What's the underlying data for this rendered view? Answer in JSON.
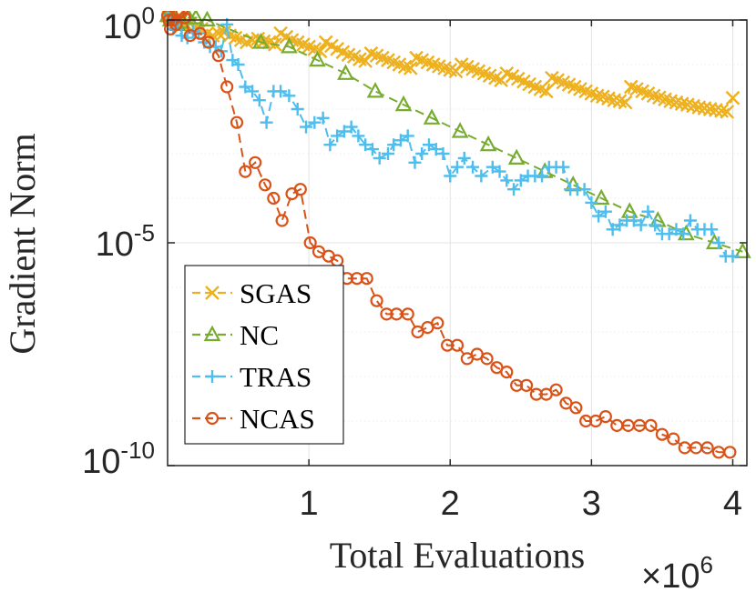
{
  "chart_data": {
    "type": "line",
    "title": "",
    "xlabel": "Total Evaluations",
    "ylabel": "Gradient Norm",
    "x_multiplier": {
      "base": "×10",
      "exponent": "6"
    },
    "xlim": [
      0,
      4.1
    ],
    "ylim_log10": [
      -10,
      0
    ],
    "yscale": "log",
    "grid": true,
    "legend_position": "bottom-left",
    "x_ticks": [
      {
        "value": 1,
        "label": "1"
      },
      {
        "value": 2,
        "label": "2"
      },
      {
        "value": 3,
        "label": "3"
      },
      {
        "value": 4,
        "label": "4"
      }
    ],
    "y_ticks": [
      {
        "log10": 0,
        "base": "10",
        "exponent": "0"
      },
      {
        "log10": -5,
        "base": "10",
        "exponent": "-5"
      },
      {
        "log10": -10,
        "base": "10",
        "exponent": "-10"
      }
    ],
    "series": [
      {
        "name": "SGAS",
        "color": "#EDB120",
        "marker": "x",
        "x": [
          0,
          0.01,
          0.02,
          0.04,
          0.06,
          0.08,
          0.1,
          0.13,
          0.16,
          0.2,
          0.24,
          0.28,
          0.32,
          0.36,
          0.4,
          0.44,
          0.48,
          0.52,
          0.56,
          0.6,
          0.64,
          0.68,
          0.72,
          0.76,
          0.8,
          0.84,
          0.88,
          0.92,
          0.96,
          1.0,
          1.04,
          1.08,
          1.12,
          1.16,
          1.2,
          1.24,
          1.28,
          1.32,
          1.36,
          1.4,
          1.44,
          1.48,
          1.52,
          1.56,
          1.6,
          1.64,
          1.68,
          1.72,
          1.76,
          1.8,
          1.84,
          1.88,
          1.92,
          1.96,
          2.0,
          2.04,
          2.08,
          2.12,
          2.16,
          2.2,
          2.24,
          2.28,
          2.32,
          2.36,
          2.4,
          2.44,
          2.48,
          2.52,
          2.56,
          2.6,
          2.64,
          2.68,
          2.72,
          2.76,
          2.8,
          2.84,
          2.88,
          2.92,
          2.96,
          3.0,
          3.04,
          3.08,
          3.12,
          3.16,
          3.2,
          3.24,
          3.28,
          3.32,
          3.36,
          3.4,
          3.44,
          3.48,
          3.52,
          3.56,
          3.6,
          3.64,
          3.68,
          3.72,
          3.76,
          3.8,
          3.84,
          3.88,
          3.92,
          3.96,
          4.0
        ],
        "log10": [
          0.1,
          0.1,
          0.05,
          0.0,
          -0.05,
          -0.1,
          -0.12,
          -0.1,
          -0.08,
          -0.15,
          -0.2,
          -0.3,
          -0.35,
          -0.3,
          -0.28,
          -0.35,
          -0.4,
          -0.45,
          -0.5,
          -0.45,
          -0.42,
          -0.48,
          -0.5,
          -0.55,
          -0.3,
          -0.38,
          -0.45,
          -0.5,
          -0.55,
          -0.6,
          -0.65,
          -0.7,
          -0.5,
          -0.58,
          -0.65,
          -0.72,
          -0.78,
          -0.82,
          -0.88,
          -0.92,
          -0.75,
          -0.8,
          -0.85,
          -0.9,
          -0.95,
          -1.0,
          -1.05,
          -1.08,
          -0.85,
          -0.9,
          -0.95,
          -1.0,
          -1.04,
          -1.08,
          -1.12,
          -1.15,
          -1.0,
          -1.05,
          -1.1,
          -1.15,
          -1.2,
          -1.25,
          -1.3,
          -1.35,
          -1.2,
          -1.26,
          -1.32,
          -1.38,
          -1.44,
          -1.5,
          -1.55,
          -1.6,
          -1.3,
          -1.35,
          -1.4,
          -1.45,
          -1.5,
          -1.55,
          -1.6,
          -1.65,
          -1.7,
          -1.72,
          -1.76,
          -1.8,
          -1.82,
          -1.85,
          -1.5,
          -1.55,
          -1.6,
          -1.65,
          -1.7,
          -1.74,
          -1.78,
          -1.82,
          -1.85,
          -1.88,
          -1.9,
          -1.93,
          -1.96,
          -1.98,
          -2.0,
          -2.02,
          -2.04,
          -2.06,
          -1.75
        ]
      },
      {
        "name": "NC",
        "color": "#77AC30",
        "marker": "triangle",
        "x": [
          0.0,
          0.02,
          0.04,
          0.07,
          0.1,
          0.15,
          0.2,
          0.28,
          0.66,
          0.86,
          1.06,
          1.26,
          1.47,
          1.67,
          1.87,
          2.07,
          2.27,
          2.47,
          2.67,
          2.87,
          3.07,
          3.27,
          3.47,
          3.67,
          3.87,
          4.07
        ],
        "log10": [
          0.1,
          0.0,
          0.05,
          -0.1,
          -0.05,
          0.05,
          0.05,
          0.0,
          -0.5,
          -0.6,
          -0.9,
          -1.2,
          -1.6,
          -1.9,
          -2.2,
          -2.5,
          -2.8,
          -3.1,
          -3.4,
          -3.7,
          -4.0,
          -4.3,
          -4.5,
          -4.8,
          -5.0,
          -5.2
        ]
      },
      {
        "name": "TRAS",
        "color": "#4DBEEE",
        "marker": "plus",
        "x": [
          0.0,
          0.02,
          0.04,
          0.06,
          0.1,
          0.14,
          0.18,
          0.22,
          0.26,
          0.3,
          0.34,
          0.38,
          0.42,
          0.46,
          0.5,
          0.55,
          0.6,
          0.65,
          0.7,
          0.75,
          0.8,
          0.86,
          0.92,
          0.98,
          1.04,
          1.1,
          1.15,
          1.2,
          1.25,
          1.3,
          1.35,
          1.4,
          1.45,
          1.5,
          1.56,
          1.6,
          1.65,
          1.7,
          1.75,
          1.8,
          1.85,
          1.9,
          1.95,
          2.0,
          2.05,
          2.1,
          2.16,
          2.22,
          2.3,
          2.35,
          2.4,
          2.45,
          2.5,
          2.55,
          2.6,
          2.65,
          2.7,
          2.75,
          2.8,
          2.85,
          2.9,
          2.95,
          3.0,
          3.05,
          3.1,
          3.15,
          3.2,
          3.25,
          3.3,
          3.35,
          3.4,
          3.45,
          3.5,
          3.55,
          3.6,
          3.65,
          3.7,
          3.75,
          3.8,
          3.85,
          3.9,
          3.95,
          4.0
        ],
        "log10": [
          0.1,
          0.0,
          -0.2,
          -0.1,
          -0.35,
          -0.4,
          -0.25,
          -0.3,
          -0.5,
          -0.6,
          -0.6,
          -0.7,
          -0.1,
          -0.9,
          -1.0,
          -1.5,
          -1.6,
          -1.8,
          -2.3,
          -1.6,
          -1.6,
          -1.7,
          -2.0,
          -2.4,
          -2.3,
          -2.2,
          -2.8,
          -2.6,
          -2.5,
          -2.4,
          -2.6,
          -2.8,
          -2.9,
          -3.1,
          -3.0,
          -2.8,
          -2.7,
          -2.6,
          -3.2,
          -3.0,
          -2.8,
          -2.9,
          -3.0,
          -3.5,
          -3.3,
          -3.1,
          -3.3,
          -3.5,
          -3.3,
          -3.4,
          -3.6,
          -3.8,
          -3.6,
          -3.5,
          -3.5,
          -3.5,
          -3.3,
          -3.3,
          -3.3,
          -3.8,
          -3.8,
          -3.8,
          -4.1,
          -4.4,
          -4.3,
          -4.7,
          -4.6,
          -4.5,
          -4.5,
          -4.6,
          -4.3,
          -4.6,
          -4.8,
          -4.8,
          -4.7,
          -4.8,
          -4.5,
          -4.7,
          -4.7,
          -4.7,
          -5.0,
          -5.3,
          -5.3
        ]
      },
      {
        "name": "NCAS",
        "color": "#D95319",
        "marker": "circle",
        "x": [
          0.0,
          0.01,
          0.02,
          0.04,
          0.06,
          0.08,
          0.1,
          0.12,
          0.16,
          0.23,
          0.29,
          0.36,
          0.42,
          0.49,
          0.55,
          0.62,
          0.69,
          0.75,
          0.81,
          0.88,
          0.94,
          1.01,
          1.07,
          1.14,
          1.2,
          1.27,
          1.34,
          1.41,
          1.48,
          1.55,
          1.62,
          1.7,
          1.77,
          1.84,
          1.91,
          1.98,
          2.05,
          2.12,
          2.19,
          2.26,
          2.33,
          2.4,
          2.47,
          2.54,
          2.61,
          2.68,
          2.75,
          2.82,
          2.89,
          2.96,
          3.03,
          3.1,
          3.18,
          3.26,
          3.34,
          3.42,
          3.5,
          3.58,
          3.66,
          3.74,
          3.82,
          3.9,
          3.98
        ],
        "log10": [
          0.1,
          0.0,
          -0.2,
          0.0,
          -0.1,
          0.15,
          0.2,
          0.05,
          -0.35,
          -0.3,
          -0.5,
          -0.8,
          -1.5,
          -2.3,
          -3.4,
          -3.2,
          -3.7,
          -4.0,
          -4.5,
          -3.9,
          -3.8,
          -5.0,
          -5.2,
          -5.3,
          -5.4,
          -5.8,
          -5.8,
          -5.8,
          -6.3,
          -6.6,
          -6.6,
          -6.6,
          -7.0,
          -6.9,
          -6.8,
          -7.3,
          -7.3,
          -7.6,
          -7.5,
          -7.6,
          -7.8,
          -7.9,
          -8.2,
          -8.2,
          -8.4,
          -8.4,
          -8.3,
          -8.6,
          -8.7,
          -9.0,
          -9.0,
          -8.9,
          -9.1,
          -9.1,
          -9.1,
          -9.1,
          -9.3,
          -9.4,
          -9.6,
          -9.6,
          -9.6,
          -9.7,
          -9.7
        ]
      }
    ]
  }
}
